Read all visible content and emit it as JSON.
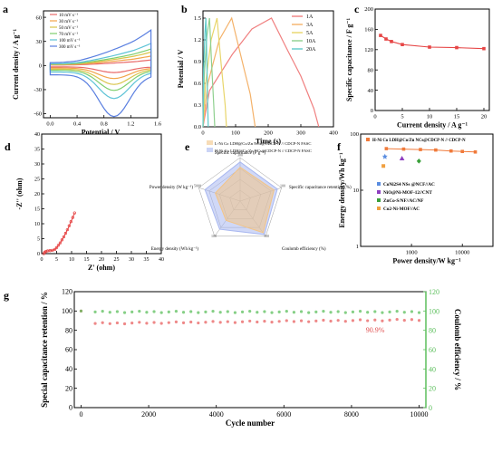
{
  "chart_data": [
    {
      "panel": "a",
      "type": "line",
      "xlabel": "Potential / V",
      "ylabel": "Current density / A g⁻¹",
      "xlim": [
        -0.1,
        1.6
      ],
      "ylim": [
        -65,
        68
      ],
      "xticks": [
        0.0,
        0.4,
        0.8,
        1.2,
        1.6
      ],
      "xtick_labels": [
        "0.0",
        "0.4",
        "0.8",
        "1.2",
        "1.6"
      ],
      "yticks": [
        -60,
        -30,
        0,
        30,
        60
      ],
      "ytick_labels": [
        "-60",
        "-30",
        "0",
        "30",
        "60"
      ],
      "legend_position": "top-left",
      "series": [
        {
          "name": "10 mV s⁻¹",
          "color": "#e96a6a",
          "upper": 7,
          "lower": -5,
          "peak": -7
        },
        {
          "name": "30 mV s⁻¹",
          "color": "#f2a44a",
          "upper": 12,
          "lower": -9,
          "peak": -13
        },
        {
          "name": "50 mV s⁻¹",
          "color": "#d9c44a",
          "upper": 17,
          "lower": -13,
          "peak": -19
        },
        {
          "name": "70 mV s⁻¹",
          "color": "#7fcf6e",
          "upper": 21,
          "lower": -17,
          "peak": -25
        },
        {
          "name": "100 mV s⁻¹",
          "color": "#5ec3d6",
          "upper": 28,
          "lower": -23,
          "peak": -33
        },
        {
          "name": "300 mV s⁻¹",
          "color": "#5a7fe0",
          "upper": 45,
          "lower": -33,
          "peak": -52
        }
      ]
    },
    {
      "panel": "b",
      "type": "line",
      "xlabel": "Time (s)",
      "ylabel": "Potential / V",
      "xlim": [
        0,
        400
      ],
      "ylim": [
        0,
        1.6
      ],
      "xticks": [
        0,
        100,
        200,
        300,
        400
      ],
      "xtick_labels": [
        "0",
        "100",
        "200",
        "300",
        "400"
      ],
      "yticks": [
        0.0,
        0.3,
        0.6,
        0.9,
        1.2,
        1.5
      ],
      "ytick_labels": [
        "0.0",
        "0.3",
        "0.6",
        "0.9",
        "1.2",
        "1.5"
      ],
      "legend_position": "top-right",
      "series": [
        {
          "name": "1A",
          "color": "#f08080",
          "points": [
            [
              0,
              0
            ],
            [
              20,
              0.5
            ],
            [
              90,
              1.0
            ],
            [
              150,
              1.35
            ],
            [
              210,
              1.5
            ],
            [
              260,
              1.05
            ],
            [
              300,
              0.7
            ],
            [
              340,
              0.25
            ],
            [
              355,
              0
            ]
          ]
        },
        {
          "name": "3A",
          "color": "#f4b26a",
          "points": [
            [
              0,
              0
            ],
            [
              15,
              0.6
            ],
            [
              50,
              1.2
            ],
            [
              88,
              1.5
            ],
            [
              115,
              1.0
            ],
            [
              145,
              0.45
            ],
            [
              160,
              0
            ]
          ]
        },
        {
          "name": "5A",
          "color": "#e8d56a",
          "points": [
            [
              0,
              0
            ],
            [
              8,
              0.6
            ],
            [
              25,
              1.2
            ],
            [
              43,
              1.5
            ],
            [
              55,
              0.9
            ],
            [
              68,
              0.3
            ],
            [
              72,
              0
            ]
          ]
        },
        {
          "name": "10A",
          "color": "#8fd08f",
          "points": [
            [
              0,
              0
            ],
            [
              4,
              0.7
            ],
            [
              12,
              1.25
            ],
            [
              20,
              1.5
            ],
            [
              26,
              0.9
            ],
            [
              33,
              0.3
            ],
            [
              36,
              0
            ]
          ]
        },
        {
          "name": "20A",
          "color": "#5ec9c9",
          "points": [
            [
              0,
              0
            ],
            [
              2,
              0.8
            ],
            [
              6,
              1.3
            ],
            [
              9,
              1.5
            ],
            [
              12,
              0.9
            ],
            [
              15,
              0.2
            ],
            [
              16,
              0
            ]
          ]
        }
      ]
    },
    {
      "panel": "c",
      "type": "line",
      "xlabel": "Current density / A g⁻¹",
      "ylabel": "Specific capacitance / F g⁻¹",
      "xlim": [
        0,
        21
      ],
      "ylim": [
        0,
        200
      ],
      "xticks": [
        0,
        5,
        10,
        15,
        20
      ],
      "xtick_labels": [
        "0",
        "5",
        "10",
        "15",
        "20"
      ],
      "yticks": [
        0,
        40,
        80,
        120,
        160,
        200
      ],
      "ytick_labels": [
        "0",
        "40",
        "80",
        "120",
        "160",
        "200"
      ],
      "color": "#e64545",
      "x": [
        1,
        2,
        3,
        5,
        10,
        15,
        20
      ],
      "y": [
        148,
        141,
        136,
        130,
        125,
        124,
        122
      ]
    },
    {
      "panel": "d",
      "type": "scatter",
      "xlabel": "Z' (ohm)",
      "ylabel": "-Z'' (ohm)",
      "xlim": [
        0,
        40
      ],
      "ylim": [
        0,
        40
      ],
      "xticks": [
        0,
        5,
        10,
        15,
        20,
        25,
        30,
        35,
        40
      ],
      "xtick_labels": [
        "0",
        "5",
        "10",
        "15",
        "20",
        "25",
        "30",
        "35",
        "40"
      ],
      "yticks": [
        0,
        5,
        10,
        15,
        20,
        25,
        30,
        35,
        40
      ],
      "ytick_labels": [
        "0",
        "5",
        "10",
        "15",
        "20",
        "25",
        "30",
        "35",
        "40"
      ],
      "color": "#e64545",
      "x": [
        0.7,
        1.0,
        1.4,
        2.0,
        2.8,
        3.6,
        4.4,
        5.0,
        5.6,
        6.2,
        6.8,
        7.4,
        8.0,
        8.6,
        9.2,
        9.8,
        10.4,
        11.0
      ],
      "y": [
        0.0,
        0.4,
        0.7,
        0.9,
        1.0,
        1.1,
        1.4,
        2.0,
        2.8,
        3.6,
        4.6,
        5.6,
        6.8,
        8.0,
        9.3,
        10.7,
        12.1,
        13.6
      ]
    },
    {
      "panel": "e",
      "type": "radar",
      "axes": [
        "Specific capacitance (F g⁻¹)",
        "Specific capacitance retention (%)",
        "Coulomb efficiency (%)",
        "Energy density (Wh kg⁻¹)",
        "Power density (W kg⁻¹)"
      ],
      "axis_max_labels": [
        "300",
        "100",
        "100",
        "100",
        "5000"
      ],
      "series": [
        {
          "name": "L-Ni Co LDH@Co/Zn NCs@CDCP-N // CDCP-N FASC",
          "color": "#f2c487",
          "values": [
            0.78,
            0.82,
            0.9,
            0.55,
            0.6
          ]
        },
        {
          "name": "H-Ni Co LDH@Co/Zn NCs@CDCP-N // CDCP-N FASC",
          "color": "#a9b8f0",
          "values": [
            0.9,
            0.9,
            0.95,
            0.8,
            0.85
          ]
        }
      ]
    },
    {
      "panel": "f",
      "type": "scatter",
      "xlabel": "Power density/W kg⁻¹",
      "ylabel": "Energy density/Wh kg⁻¹",
      "scale": "log",
      "xlim": [
        100,
        40000
      ],
      "ylim": [
        1,
        100
      ],
      "xticks": [
        1000,
        10000
      ],
      "xtick_labels": [
        "1000",
        "10000"
      ],
      "yticks": [
        1,
        10,
        100
      ],
      "ytick_labels": [
        "1",
        "10",
        "100"
      ],
      "series": [
        {
          "name": "H-Ni Co LDH@Co/Zn NCs@CDCP-N // CDCP-N",
          "color": "#f07a3a",
          "marker": "square-line",
          "x": [
            320,
            700,
            1500,
            3000,
            6000,
            10000,
            18000
          ],
          "y": [
            55,
            54,
            53,
            52,
            50,
            49,
            48
          ]
        },
        {
          "name": "CoNi2S4 NSs @NCF//AC",
          "color": "#5a8de0",
          "marker": "star",
          "x": [
            300
          ],
          "y": [
            40
          ]
        },
        {
          "name": "NiO@Ni-MOF-12//CNT",
          "color": "#8e3fc0",
          "marker": "triangle",
          "x": [
            650
          ],
          "y": [
            37
          ]
        },
        {
          "name": "ZnCo-S/NF//AC/NF",
          "color": "#3aa03a",
          "marker": "diamond",
          "x": [
            1400
          ],
          "y": [
            33
          ]
        },
        {
          "name": "Co2-Ni-MOF//AC",
          "color": "#f0a040",
          "marker": "square",
          "x": [
            280
          ],
          "y": [
            27
          ]
        }
      ]
    },
    {
      "panel": "g",
      "type": "scatter",
      "xlabel": "Cycle number",
      "ylabel": "Special capacitance retention / %",
      "ylabel_right": "Coulomb efficiency / %",
      "xlim": [
        -200,
        10200
      ],
      "ylim": [
        0,
        120
      ],
      "xticks": [
        0,
        2000,
        4000,
        6000,
        8000,
        10000
      ],
      "xtick_labels": [
        "0",
        "2000",
        "4000",
        "6000",
        "8000",
        "10000"
      ],
      "yticks": [
        0,
        20,
        40,
        60,
        80,
        100,
        120
      ],
      "ytick_labels": [
        "0",
        "20",
        "40",
        "60",
        "80",
        "100",
        "120"
      ],
      "annotation": "90.9%",
      "series": [
        {
          "name": "Capacitance retention",
          "color": "#e86060",
          "axis": "left",
          "start": 100,
          "level": 87,
          "end": 90.9
        },
        {
          "name": "Coulomb efficiency",
          "color": "#5cbf5c",
          "axis": "right",
          "start": 100,
          "level": 99,
          "end": 99
        }
      ]
    }
  ],
  "panel_labels": [
    "a",
    "b",
    "c",
    "d",
    "e",
    "f",
    "g"
  ]
}
